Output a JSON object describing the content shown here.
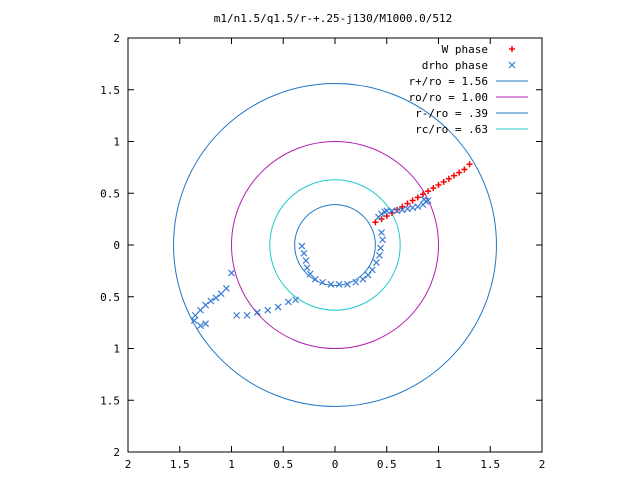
{
  "chart_data": {
    "type": "scatter",
    "title": "m1/n1.5/q1.5/r-+.25-j130/M1000.0/512",
    "xlabel": "",
    "ylabel": "",
    "xlim": [
      -2,
      2
    ],
    "ylim": [
      -2,
      2
    ],
    "x_tick_values": [
      -2,
      -1.5,
      -1,
      -0.5,
      0,
      0.5,
      1,
      1.5,
      2
    ],
    "x_tick_labels": [
      "2",
      "1.5",
      "1",
      "0.5",
      "0",
      "0.5",
      "1",
      "1.5",
      "2"
    ],
    "y_tick_values": [
      2,
      1.5,
      1,
      0.5,
      0,
      -0.5,
      -1,
      -1.5,
      -2
    ],
    "y_tick_labels": [
      "2",
      "1.5",
      "1",
      "0.5",
      "0",
      "0.5",
      "1",
      "1.5",
      "2"
    ],
    "grid": false,
    "legend_position": "top-right",
    "series": [
      {
        "name": "W phase",
        "kind": "points",
        "marker": "plus",
        "color": "#ff0000",
        "x": [
          0.39,
          0.45,
          0.5,
          0.55,
          0.6,
          0.65,
          0.7,
          0.75,
          0.8,
          0.85,
          0.9,
          0.95,
          1.0,
          1.05,
          1.1,
          1.15,
          1.2,
          1.25,
          1.3
        ],
        "y": [
          0.22,
          0.25,
          0.28,
          0.31,
          0.34,
          0.37,
          0.4,
          0.43,
          0.46,
          0.49,
          0.52,
          0.55,
          0.58,
          0.61,
          0.64,
          0.67,
          0.7,
          0.73,
          0.78
        ]
      },
      {
        "name": "drho phase",
        "kind": "points",
        "marker": "cross",
        "color": "#3a7bd5",
        "x": [
          0.42,
          0.45,
          0.48,
          0.5,
          0.55,
          0.6,
          0.65,
          0.7,
          0.75,
          0.8,
          0.85,
          0.88,
          0.9,
          0.86,
          0.45,
          0.46,
          0.44,
          0.43,
          0.4,
          0.36,
          0.32,
          0.27,
          0.2,
          0.12,
          0.04,
          -0.04,
          -0.12,
          -0.19,
          -0.24,
          -0.27,
          -0.28,
          -0.3,
          -0.32,
          -0.38,
          -0.45,
          -0.55,
          -0.65,
          -0.75,
          -0.85,
          -0.95,
          -1.0,
          -1.05,
          -1.1,
          -1.15,
          -1.2,
          -1.25,
          -1.3,
          -1.35,
          -1.36,
          -1.25,
          -1.3
        ],
        "y": [
          0.27,
          0.3,
          0.32,
          0.33,
          0.33,
          0.33,
          0.34,
          0.35,
          0.36,
          0.37,
          0.39,
          0.42,
          0.43,
          0.44,
          0.12,
          0.05,
          -0.03,
          -0.1,
          -0.17,
          -0.24,
          -0.29,
          -0.33,
          -0.36,
          -0.38,
          -0.38,
          -0.38,
          -0.36,
          -0.33,
          -0.28,
          -0.22,
          -0.15,
          -0.08,
          -0.01,
          -0.53,
          -0.55,
          -0.6,
          -0.63,
          -0.65,
          -0.68,
          -0.68,
          -0.27,
          -0.42,
          -0.47,
          -0.51,
          -0.54,
          -0.58,
          -0.63,
          -0.68,
          -0.73,
          -0.76,
          -0.78
        ]
      },
      {
        "name": "r+/ro = 1.56",
        "kind": "circle",
        "radius": 1.56,
        "color": "#1f77c4"
      },
      {
        "name": "ro/ro = 1.00",
        "kind": "circle",
        "radius": 1.0,
        "color": "#b020b0"
      },
      {
        "name": "r-/ro = .39",
        "kind": "circle",
        "radius": 0.39,
        "color": "#1f77c4"
      },
      {
        "name": "rc/ro = .63",
        "kind": "circle",
        "radius": 0.63,
        "color": "#20c8c8"
      }
    ]
  }
}
